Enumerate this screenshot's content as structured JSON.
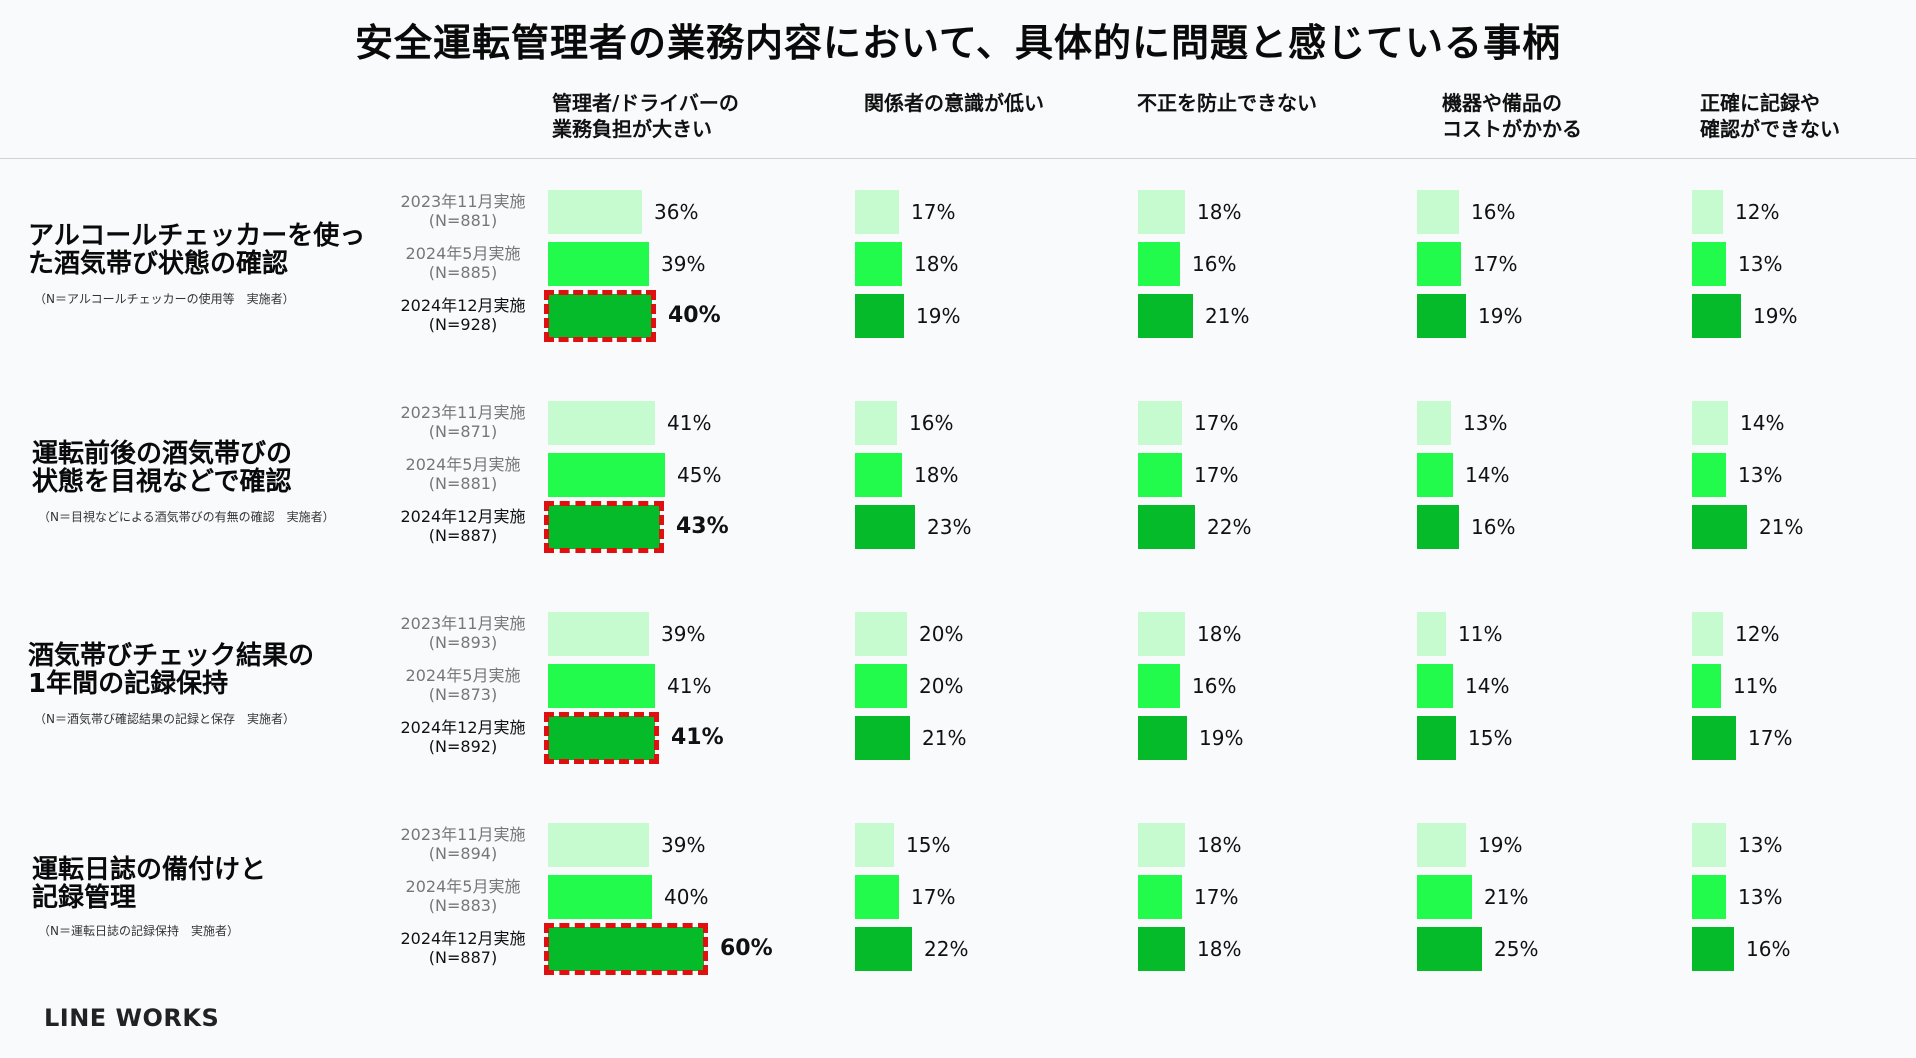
{
  "title": "安全運転管理者の業務内容において、具体的に問題と感じている事柄",
  "logo": "LINE WORKS",
  "chart_data": {
    "type": "bar",
    "orientation": "horizontal",
    "title": "安全運転管理者の業務内容において、具体的に問題と感じている事柄",
    "categories": [
      "管理者/ドライバーの\n業務負担が大きい",
      "関係者の意識が低い",
      "不正を防止できない",
      "機器や備品の\nコストがかかる",
      "正確に記録や\n確認ができない"
    ],
    "surveys": [
      "2023年11月実施",
      "2024年5月実施",
      "2024年12月実施"
    ],
    "unit": "%",
    "groups": [
      {
        "title": "アルコールチェッカーを使っ\nた酒気帯び状態の確認",
        "note": "（N＝アルコールチェッカーの使用等　実施者）",
        "samples": [
          "(N=881)",
          "(N=885)",
          "(N=928)"
        ],
        "values": [
          [
            36,
            39,
            40
          ],
          [
            17,
            18,
            19
          ],
          [
            18,
            16,
            21
          ],
          [
            16,
            17,
            19
          ],
          [
            12,
            13,
            19
          ]
        ]
      },
      {
        "title": "運転前後の酒気帯びの\n状態を目視などで確認",
        "note": "（N＝目視などによる酒気帯びの有無の確認　実施者）",
        "samples": [
          "(N=871)",
          "(N=881)",
          "(N=887)"
        ],
        "values": [
          [
            41,
            45,
            43
          ],
          [
            16,
            18,
            23
          ],
          [
            17,
            17,
            22
          ],
          [
            13,
            14,
            16
          ],
          [
            14,
            13,
            21
          ]
        ]
      },
      {
        "title": "酒気帯びチェック結果の\n1年間の記録保持",
        "note": "（N＝酒気帯び確認結果の記録と保存　実施者）",
        "samples": [
          "(N=893)",
          "(N=873)",
          "(N=892)"
        ],
        "values": [
          [
            39,
            41,
            41
          ],
          [
            20,
            20,
            21
          ],
          [
            18,
            16,
            19
          ],
          [
            11,
            14,
            15
          ],
          [
            12,
            11,
            17
          ]
        ]
      },
      {
        "title": "運転日誌の備付けと\n記録管理",
        "note": "（N＝運転日誌の記録保持　実施者）",
        "samples": [
          "(N=894)",
          "(N=883)",
          "(N=887)"
        ],
        "values": [
          [
            39,
            40,
            60
          ],
          [
            15,
            17,
            22
          ],
          [
            18,
            17,
            18
          ],
          [
            19,
            21,
            25
          ],
          [
            13,
            13,
            16
          ]
        ]
      }
    ],
    "highlight": {
      "column": 0,
      "survey": 2
    },
    "colors": {
      "2023年11月実施": "#c6fbcf",
      "2024年5月実施": "#22fb4b",
      "2024年12月実施": "#06bb2a",
      "highlight": "#e01010"
    }
  }
}
